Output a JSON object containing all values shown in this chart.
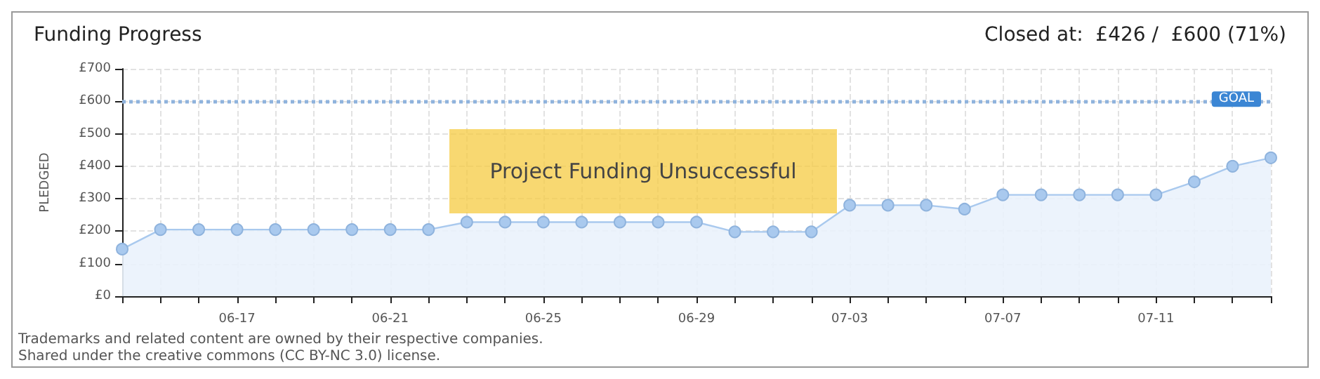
{
  "chart_data": {
    "type": "area",
    "title": "Funding Progress",
    "subtitle": "Closed at:  £426 /  £600 (71%)",
    "ylabel": "PLEDGED",
    "categories": [
      null,
      null,
      null,
      "06-17",
      null,
      null,
      null,
      "06-21",
      null,
      null,
      null,
      "06-25",
      null,
      null,
      null,
      "06-29",
      null,
      null,
      null,
      "07-03",
      null,
      null,
      null,
      "07-07",
      null,
      null,
      null,
      "07-11",
      null,
      null,
      null
    ],
    "series": [
      {
        "color": "#a9c9ee",
        "values": [
          145,
          205,
          205,
          205,
          205,
          205,
          205,
          205,
          205,
          228,
          228,
          228,
          228,
          228,
          228,
          228,
          198,
          198,
          198,
          280,
          280,
          280,
          268,
          312,
          312,
          312,
          312,
          312,
          352,
          400,
          426
        ]
      }
    ],
    "ylim": [
      0,
      700
    ],
    "yticks": [
      {
        "value": 0,
        "label": "£0"
      },
      {
        "value": 100,
        "label": "£100"
      },
      {
        "value": 200,
        "label": "£200"
      },
      {
        "value": 300,
        "label": "£300"
      },
      {
        "value": 400,
        "label": "£400"
      },
      {
        "value": 500,
        "label": "£500"
      },
      {
        "value": 600,
        "label": "£600"
      },
      {
        "value": 700,
        "label": "£700"
      }
    ],
    "ref_lines": [
      {
        "axis": "y",
        "value": 600,
        "label": "GOAL",
        "color": "#8fb3dd",
        "line_style": "dotted"
      }
    ],
    "annotations": [
      "Project Funding Unsuccessful",
      "Trademarks and related content are owned by their respective companies.",
      "Shared under the creative commons (CC BY-NC 3.0) license."
    ],
    "grid": true,
    "marker": "circle",
    "line_style": "solid"
  }
}
